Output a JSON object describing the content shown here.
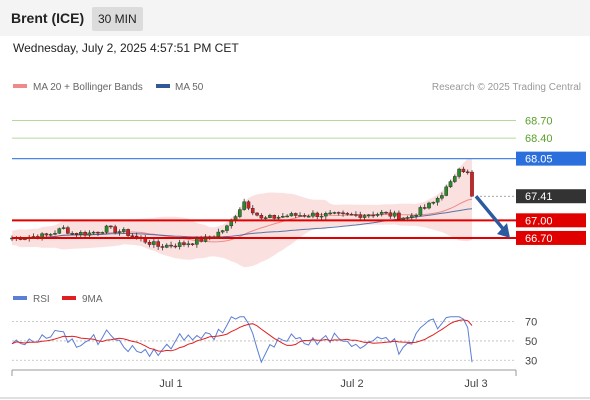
{
  "header": {
    "title": "Brent (ICE)",
    "timeframe": "30 MIN"
  },
  "datetime": "Wednesday, July 2, 2025 4:57:51 PM CET",
  "legend": {
    "ma20": {
      "label": "MA 20 + Bollinger Bands",
      "color": "#f08a8a"
    },
    "ma50": {
      "label": "MA 50",
      "color": "#2f5a96"
    },
    "credit": "Research © 2025 Trading Central"
  },
  "rsi_legend": {
    "rsi": {
      "label": "RSI",
      "color": "#5b7fd6"
    },
    "ma9": {
      "label": "9MA",
      "color": "#e02020"
    }
  },
  "chart_data": [
    {
      "type": "candlestick",
      "title": "Brent (ICE) 30 MIN",
      "ylim": [
        65.95,
        69.15
      ],
      "x_labels": [
        "Jul 1",
        "Jul 2",
        "Jul 3"
      ],
      "current_price": "67.41",
      "levels": [
        {
          "value": 68.7,
          "label": "68.70",
          "style": "resistance-light"
        },
        {
          "value": 68.4,
          "label": "68.40",
          "style": "resistance-light"
        },
        {
          "value": 68.05,
          "label": "68.05",
          "style": "pivot"
        },
        {
          "value": 67.0,
          "label": "67.00",
          "style": "support"
        },
        {
          "value": 66.7,
          "label": "66.70",
          "style": "support"
        }
      ],
      "bias": "down",
      "arrow_from": 67.41,
      "arrow_to": 66.7,
      "colors": {
        "up": "#2a8a2a",
        "down": "#d42020",
        "pivot": "#4a86e8",
        "support": "#e00000",
        "resistance": "#5aa02c"
      }
    },
    {
      "type": "line",
      "title": "RSI",
      "ylim": [
        22,
        82
      ],
      "y_ticks": [
        30,
        50,
        70
      ],
      "series_names": [
        "RSI",
        "9MA"
      ]
    }
  ]
}
